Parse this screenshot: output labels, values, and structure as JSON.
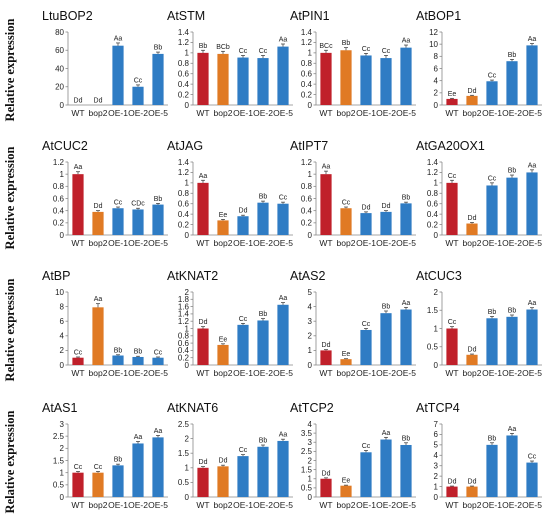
{
  "y_axis_label": "Relative expression",
  "bar_colors": [
    "#c0202a",
    "#e07a24",
    "#2f7cc4",
    "#2f7cc4",
    "#2f7cc4"
  ],
  "chart_data": [
    {
      "type": "bar",
      "title": "LtuBOP2",
      "categories": [
        "WT",
        "bop2",
        "OE-1",
        "OE-2",
        "OE-5"
      ],
      "values": [
        0,
        0,
        65,
        20,
        56
      ],
      "errors": [
        0,
        0,
        3,
        2,
        2
      ],
      "significance": [
        "Dd",
        "Dd",
        "Aa",
        "Cc",
        "Bb"
      ],
      "ylim": [
        0,
        80
      ],
      "yticks": [
        0,
        20,
        40,
        60,
        80
      ],
      "ytick_labels": [
        "0",
        "20",
        "40",
        "60",
        "80"
      ]
    },
    {
      "type": "bar",
      "title": "AtSTM",
      "categories": [
        "WT",
        "bop2",
        "OE-1",
        "OE-2",
        "OE-5"
      ],
      "values": [
        1.0,
        0.98,
        0.91,
        0.9,
        1.12
      ],
      "errors": [
        0.05,
        0.05,
        0.04,
        0.05,
        0.05
      ],
      "significance": [
        "Bb",
        "BCb",
        "Cc",
        "Cc",
        "Aa"
      ],
      "ylim": [
        0,
        1.4
      ],
      "yticks": [
        0,
        0.2,
        0.4,
        0.6,
        0.8,
        1,
        1.2,
        1.4
      ],
      "ytick_labels": [
        "0",
        "0.2",
        "0.4",
        "0.6",
        "0.8",
        "1",
        "1.2",
        "1.4"
      ]
    },
    {
      "type": "bar",
      "title": "AtPIN1",
      "categories": [
        "WT",
        "bop2",
        "OE-1",
        "OE-2",
        "OE-5"
      ],
      "values": [
        1.0,
        1.05,
        0.95,
        0.9,
        1.1
      ],
      "errors": [
        0.05,
        0.05,
        0.04,
        0.05,
        0.05
      ],
      "significance": [
        "BCc",
        "Bb",
        "Cc",
        "Cc",
        "Aa"
      ],
      "ylim": [
        0,
        1.4
      ],
      "yticks": [
        0,
        0.2,
        0.4,
        0.6,
        0.8,
        1,
        1.2,
        1.4
      ],
      "ytick_labels": [
        "0",
        "0.2",
        "0.4",
        "0.6",
        "0.8",
        "1",
        "1.2",
        "1.4"
      ]
    },
    {
      "type": "bar",
      "title": "AtBOP1",
      "categories": [
        "WT",
        "bop2",
        "OE-1",
        "OE-2",
        "OE-5"
      ],
      "values": [
        1.0,
        1.5,
        3.9,
        7.2,
        9.8
      ],
      "errors": [
        0.1,
        0.1,
        0.2,
        0.3,
        0.3
      ],
      "significance": [
        "Ee",
        "Dd",
        "Cc",
        "Bb",
        "Aa"
      ],
      "ylim": [
        0,
        12
      ],
      "yticks": [
        0,
        2,
        4,
        6,
        8,
        10,
        12
      ],
      "ytick_labels": [
        "0",
        "2",
        "4",
        "6",
        "8",
        "10",
        "12"
      ]
    },
    {
      "type": "bar",
      "title": "AtCUC2",
      "categories": [
        "WT",
        "bop2",
        "OE-1",
        "OE-2",
        "OE-5"
      ],
      "values": [
        1.0,
        0.38,
        0.44,
        0.42,
        0.5
      ],
      "errors": [
        0.04,
        0.02,
        0.02,
        0.02,
        0.02
      ],
      "significance": [
        "Aa",
        "Dd",
        "Cc",
        "CDc",
        "Bb"
      ],
      "ylim": [
        0,
        1.2
      ],
      "yticks": [
        0,
        0.2,
        0.4,
        0.6,
        0.8,
        1,
        1.2
      ],
      "ytick_labels": [
        "0",
        "0.2",
        "0.4",
        "0.6",
        "0.8",
        "1",
        "1.2"
      ]
    },
    {
      "type": "bar",
      "title": "AtJAG",
      "categories": [
        "WT",
        "bop2",
        "OE-1",
        "OE-2",
        "OE-5"
      ],
      "values": [
        1.0,
        0.28,
        0.36,
        0.62,
        0.6
      ],
      "errors": [
        0.05,
        0.02,
        0.02,
        0.03,
        0.03
      ],
      "significance": [
        "Aa",
        "Ee",
        "Dd",
        "Bb",
        "Cc"
      ],
      "ylim": [
        0,
        1.4
      ],
      "yticks": [
        0,
        0.2,
        0.4,
        0.6,
        0.8,
        1,
        1.2,
        1.4
      ],
      "ytick_labels": [
        "0",
        "0.2",
        "0.4",
        "0.6",
        "0.8",
        "1",
        "1.2",
        "1.4"
      ]
    },
    {
      "type": "bar",
      "title": "AtIPT7",
      "categories": [
        "WT",
        "bop2",
        "OE-1",
        "OE-2",
        "OE-5"
      ],
      "values": [
        1.0,
        0.44,
        0.36,
        0.38,
        0.52
      ],
      "errors": [
        0.05,
        0.02,
        0.02,
        0.02,
        0.02
      ],
      "significance": [
        "Aa",
        "Cc",
        "Dd",
        "Dd",
        "Bb"
      ],
      "ylim": [
        0,
        1.2
      ],
      "yticks": [
        0,
        0.2,
        0.4,
        0.6,
        0.8,
        1,
        1.2
      ],
      "ytick_labels": [
        "0",
        "0.2",
        "0.4",
        "0.6",
        "0.8",
        "1",
        "1.2"
      ]
    },
    {
      "type": "bar",
      "title": "AtGA20OX1",
      "categories": [
        "WT",
        "bop2",
        "OE-1",
        "OE-2",
        "OE-5"
      ],
      "values": [
        1.0,
        0.22,
        0.95,
        1.1,
        1.2
      ],
      "errors": [
        0.05,
        0.02,
        0.05,
        0.05,
        0.05
      ],
      "significance": [
        "Cc",
        "Dd",
        "Cc",
        "Bb",
        "Aa"
      ],
      "ylim": [
        0,
        1.4
      ],
      "yticks": [
        0,
        0.2,
        0.4,
        0.6,
        0.8,
        1,
        1.2,
        1.4
      ],
      "ytick_labels": [
        "0",
        "0.2",
        "0.4",
        "0.6",
        "0.8",
        "1",
        "1.2",
        "1.4"
      ]
    },
    {
      "type": "bar",
      "title": "AtBP",
      "categories": [
        "WT",
        "bop2",
        "OE-1",
        "OE-2",
        "OE-5"
      ],
      "values": [
        1.0,
        7.9,
        1.3,
        1.1,
        1.0
      ],
      "errors": [
        0.1,
        0.5,
        0.1,
        0.1,
        0.1
      ],
      "significance": [
        "Cc",
        "Aa",
        "Bb",
        "Bb",
        "Cc"
      ],
      "ylim": [
        0,
        10
      ],
      "yticks": [
        0,
        2,
        4,
        6,
        8,
        10
      ],
      "ytick_labels": [
        "0",
        "2",
        "4",
        "6",
        "8",
        "10"
      ]
    },
    {
      "type": "bar",
      "title": "AtKNAT2",
      "categories": [
        "WT",
        "bop2",
        "OE-1",
        "OE-2",
        "OE-5"
      ],
      "values": [
        1.0,
        0.55,
        1.1,
        1.22,
        1.65
      ],
      "errors": [
        0.05,
        0.03,
        0.04,
        0.05,
        0.06
      ],
      "significance": [
        "Dd",
        "Ee",
        "Cc",
        "Bb",
        "Aa"
      ],
      "ylim": [
        0,
        2
      ],
      "yticks": [
        0,
        0.2,
        0.4,
        0.6,
        0.8,
        1,
        1.2,
        1.4,
        1.6,
        1.8,
        2
      ],
      "ytick_labels": [
        "0",
        "0.2",
        "0.4",
        "0.6",
        "0.8",
        "1",
        "1.2",
        "1.4",
        "1.6",
        "1.8",
        "2"
      ]
    },
    {
      "type": "bar",
      "title": "AtAS2",
      "categories": [
        "WT",
        "bop2",
        "OE-1",
        "OE-2",
        "OE-5"
      ],
      "values": [
        1.0,
        0.4,
        2.4,
        3.55,
        3.8
      ],
      "errors": [
        0.05,
        0.03,
        0.1,
        0.15,
        0.15
      ],
      "significance": [
        "Dd",
        "Ee",
        "Cc",
        "Bb",
        "Aa"
      ],
      "ylim": [
        0,
        5
      ],
      "yticks": [
        0,
        1,
        2,
        3,
        4,
        5
      ],
      "ytick_labels": [
        "0",
        "1",
        "2",
        "3",
        "4",
        "5"
      ]
    },
    {
      "type": "bar",
      "title": "AtCUC3",
      "categories": [
        "WT",
        "bop2",
        "OE-1",
        "OE-2",
        "OE-5"
      ],
      "values": [
        1.0,
        0.28,
        1.28,
        1.32,
        1.52
      ],
      "errors": [
        0.05,
        0.02,
        0.05,
        0.05,
        0.05
      ],
      "significance": [
        "Cc",
        "Dd",
        "Bb",
        "Bb",
        "Aa"
      ],
      "ylim": [
        0,
        2
      ],
      "yticks": [
        0,
        0.5,
        1,
        1.5,
        2
      ],
      "ytick_labels": [
        "0",
        "0.5",
        "1",
        "1.5",
        "2"
      ]
    },
    {
      "type": "bar",
      "title": "AtAS1",
      "categories": [
        "WT",
        "bop2",
        "OE-1",
        "OE-2",
        "OE-5"
      ],
      "values": [
        1.0,
        1.0,
        1.3,
        2.2,
        2.45
      ],
      "errors": [
        0.05,
        0.05,
        0.05,
        0.08,
        0.08
      ],
      "significance": [
        "Cc",
        "Cc",
        "Bb",
        "Aa",
        "Aa"
      ],
      "ylim": [
        0,
        3
      ],
      "yticks": [
        0,
        0.5,
        1,
        1.5,
        2,
        2.5,
        3
      ],
      "ytick_labels": [
        "0",
        "0.5",
        "1",
        "1.5",
        "2",
        "2.5",
        "3"
      ]
    },
    {
      "type": "bar",
      "title": "AtKNAT6",
      "categories": [
        "WT",
        "bop2",
        "OE-1",
        "OE-2",
        "OE-5"
      ],
      "values": [
        1.0,
        1.05,
        1.4,
        1.72,
        1.92
      ],
      "errors": [
        0.04,
        0.04,
        0.05,
        0.06,
        0.06
      ],
      "significance": [
        "Dd",
        "Dd",
        "Cc",
        "Bb",
        "Aa"
      ],
      "ylim": [
        0,
        2.5
      ],
      "yticks": [
        0,
        0.5,
        1,
        1.5,
        2,
        2.5
      ],
      "ytick_labels": [
        "0",
        "0.5",
        "1",
        "1.5",
        "2",
        "2.5"
      ]
    },
    {
      "type": "bar",
      "title": "AtTCP2",
      "categories": [
        "WT",
        "bop2",
        "OE-1",
        "OE-2",
        "OE-5"
      ],
      "values": [
        1.0,
        0.62,
        2.45,
        3.15,
        2.85
      ],
      "errors": [
        0.05,
        0.03,
        0.1,
        0.12,
        0.12
      ],
      "significance": [
        "Dd",
        "Ee",
        "Cc",
        "Aa",
        "Bb"
      ],
      "ylim": [
        0,
        4
      ],
      "yticks": [
        0,
        0.5,
        1,
        1.5,
        2,
        2.5,
        3,
        3.5,
        4
      ],
      "ytick_labels": [
        "0",
        "0.5",
        "1",
        "1.5",
        "2",
        "2.5",
        "3",
        "3.5",
        "4"
      ]
    },
    {
      "type": "bar",
      "title": "AtTCP4",
      "categories": [
        "WT",
        "bop2",
        "OE-1",
        "OE-2",
        "OE-5"
      ],
      "values": [
        1.0,
        1.0,
        5.0,
        5.9,
        3.3
      ],
      "errors": [
        0.05,
        0.05,
        0.2,
        0.2,
        0.15
      ],
      "significance": [
        "Dd",
        "Dd",
        "Bb",
        "Aa",
        "Cc"
      ],
      "ylim": [
        0,
        7
      ],
      "yticks": [
        0,
        1,
        2,
        3,
        4,
        5,
        6,
        7
      ],
      "ytick_labels": [
        "0",
        "1",
        "2",
        "3",
        "4",
        "5",
        "6",
        "7"
      ]
    }
  ]
}
